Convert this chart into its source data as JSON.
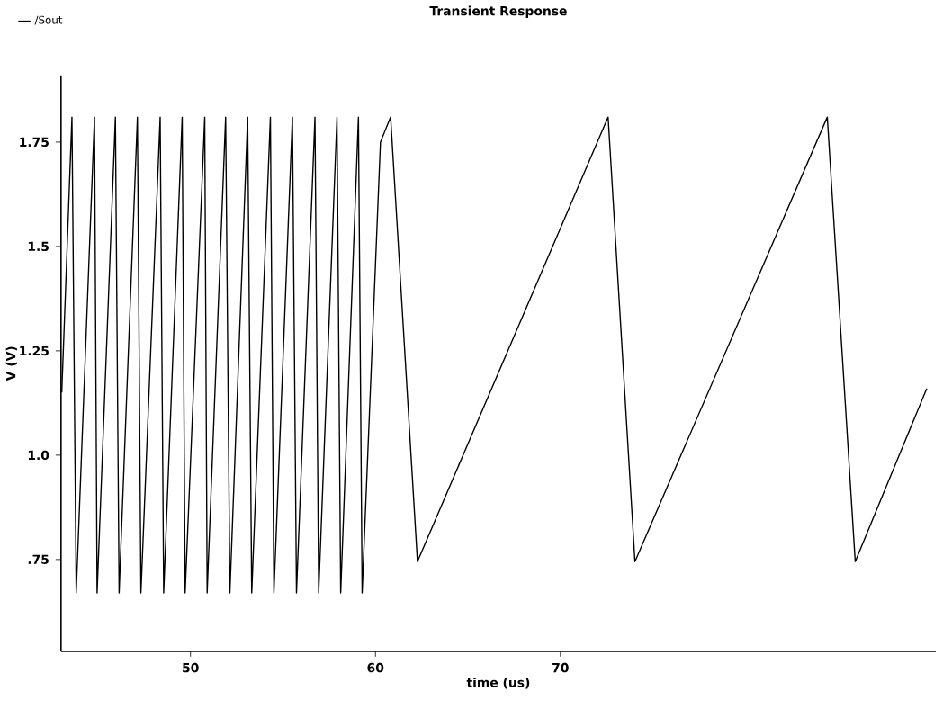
{
  "chart_data": {
    "type": "line",
    "title": "Transient Response",
    "xlabel": "time (us)",
    "ylabel": "V (V)",
    "xlim": [
      43.0,
      90.3
    ],
    "xticks": [
      50,
      60,
      70
    ],
    "ylim": [
      0.53,
      1.91
    ],
    "yticks": [
      {
        "value": 0.75,
        "label": ".75"
      },
      {
        "value": 1.0,
        "label": "1.0"
      },
      1.25,
      1.5,
      1.75
    ],
    "grid": false,
    "legend": "top left",
    "marker": "none",
    "line_style": "solid",
    "x": [
      43.04,
      43.59,
      43.82,
      44.81,
      44.95,
      45.94,
      46.14,
      47.13,
      47.32,
      48.36,
      48.55,
      49.55,
      49.71,
      50.77,
      50.9,
      51.9,
      52.13,
      53.09,
      53.31,
      54.32,
      54.51,
      55.51,
      55.73,
      56.73,
      56.93,
      57.92,
      58.12,
      59.08,
      59.28,
      60.27,
      60.82,
      62.27,
      72.58,
      74.03,
      84.43,
      85.94,
      89.81
    ],
    "series": [
      {
        "name": "/Sout",
        "color": "#000000",
        "values": [
          1.15,
          1.81,
          0.67,
          1.81,
          0.67,
          1.81,
          0.67,
          1.81,
          0.67,
          1.81,
          0.67,
          1.81,
          0.67,
          1.81,
          0.67,
          1.81,
          0.67,
          1.81,
          0.67,
          1.81,
          0.67,
          1.81,
          0.67,
          1.81,
          0.67,
          1.81,
          0.67,
          1.81,
          0.67,
          1.75,
          1.81,
          0.745,
          1.81,
          0.745,
          1.81,
          0.745,
          1.16
        ]
      }
    ]
  }
}
